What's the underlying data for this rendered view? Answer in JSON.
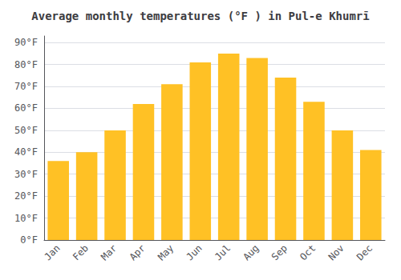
{
  "chart_data": {
    "type": "bar",
    "title": "Average monthly temperatures (°F ) in Pul-e Khumrī",
    "categories": [
      "Jan",
      "Feb",
      "Mar",
      "Apr",
      "May",
      "Jun",
      "Jul",
      "Aug",
      "Sep",
      "Oct",
      "Nov",
      "Dec"
    ],
    "values": [
      36,
      40,
      50,
      62,
      71,
      81,
      85,
      83,
      74,
      63,
      50,
      41
    ],
    "color": "#FFC125",
    "ylim": [
      0,
      93
    ],
    "yticks": [
      {
        "value": 0,
        "label": "0°F"
      },
      {
        "value": 10,
        "label": "10°F"
      },
      {
        "value": 20,
        "label": "20°F"
      },
      {
        "value": 30,
        "label": "30°F"
      },
      {
        "value": 40,
        "label": "40°F"
      },
      {
        "value": 50,
        "label": "50°F"
      },
      {
        "value": 60,
        "label": "60°F"
      },
      {
        "value": 70,
        "label": "70°F"
      },
      {
        "value": 80,
        "label": "80°F"
      },
      {
        "value": 90,
        "label": "90°F"
      }
    ],
    "grid": true
  }
}
